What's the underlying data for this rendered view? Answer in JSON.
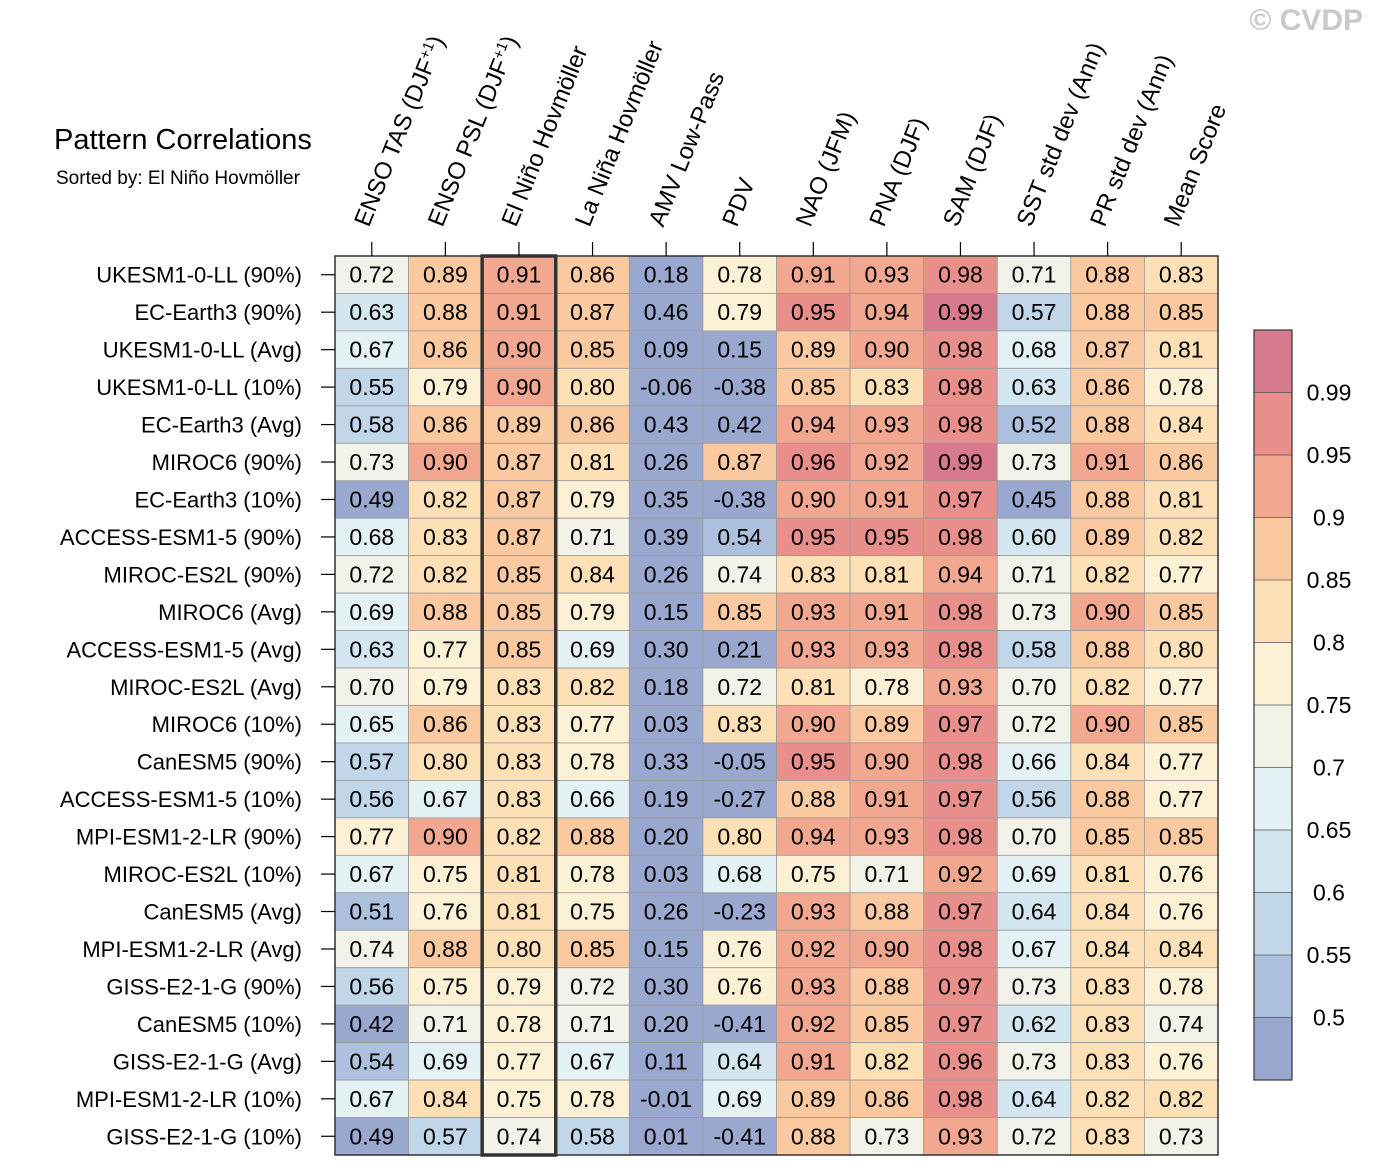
{
  "watermark": "© CVDP",
  "title": "Pattern Correlations",
  "subtitle": "Sorted by: El Niño Hovmöller",
  "chart_data": {
    "type": "heatmap",
    "highlighted_column": "El Niño Hovmöller",
    "columns": [
      {
        "label": "ENSO TAS (DJF",
        "sup": "+1",
        "suffix": ")"
      },
      {
        "label": "ENSO PSL (DJF",
        "sup": "+1",
        "suffix": ")"
      },
      {
        "label": "El Niño Hovmöller"
      },
      {
        "label": "La Niña Hovmöller"
      },
      {
        "label": "AMV Low-Pass"
      },
      {
        "label": "PDV"
      },
      {
        "label": "NAO (JFM)"
      },
      {
        "label": "PNA (DJF)"
      },
      {
        "label": "SAM (DJF)"
      },
      {
        "label": "SST std dev (Ann)"
      },
      {
        "label": "PR std dev (Ann)"
      },
      {
        "label": "Mean Score"
      }
    ],
    "rows": [
      "UKESM1-0-LL (90%)",
      "EC-Earth3 (90%)",
      "UKESM1-0-LL (Avg)",
      "UKESM1-0-LL (10%)",
      "EC-Earth3 (Avg)",
      "MIROC6 (90%)",
      "EC-Earth3 (10%)",
      "ACCESS-ESM1-5 (90%)",
      "MIROC-ES2L (90%)",
      "MIROC6 (Avg)",
      "ACCESS-ESM1-5 (Avg)",
      "MIROC-ES2L (Avg)",
      "MIROC6 (10%)",
      "CanESM5 (90%)",
      "ACCESS-ESM1-5 (10%)",
      "MPI-ESM1-2-LR (90%)",
      "MIROC-ES2L (10%)",
      "CanESM5 (Avg)",
      "MPI-ESM1-2-LR (Avg)",
      "GISS-E2-1-G (90%)",
      "CanESM5 (10%)",
      "GISS-E2-1-G (Avg)",
      "MPI-ESM1-2-LR (10%)",
      "GISS-E2-1-G (10%)"
    ],
    "values": [
      [
        "0.72",
        "0.89",
        "0.91",
        "0.86",
        "0.18",
        "0.78",
        "0.91",
        "0.93",
        "0.98",
        "0.71",
        "0.88",
        "0.83"
      ],
      [
        "0.63",
        "0.88",
        "0.91",
        "0.87",
        "0.46",
        "0.79",
        "0.95",
        "0.94",
        "0.99",
        "0.57",
        "0.88",
        "0.85"
      ],
      [
        "0.67",
        "0.86",
        "0.90",
        "0.85",
        "0.09",
        "0.15",
        "0.89",
        "0.90",
        "0.98",
        "0.68",
        "0.87",
        "0.81"
      ],
      [
        "0.55",
        "0.79",
        "0.90",
        "0.80",
        "-0.06",
        "-0.38",
        "0.85",
        "0.83",
        "0.98",
        "0.63",
        "0.86",
        "0.78"
      ],
      [
        "0.58",
        "0.86",
        "0.89",
        "0.86",
        "0.43",
        "0.42",
        "0.94",
        "0.93",
        "0.98",
        "0.52",
        "0.88",
        "0.84"
      ],
      [
        "0.73",
        "0.90",
        "0.87",
        "0.81",
        "0.26",
        "0.87",
        "0.96",
        "0.92",
        "0.99",
        "0.73",
        "0.91",
        "0.86"
      ],
      [
        "0.49",
        "0.82",
        "0.87",
        "0.79",
        "0.35",
        "-0.38",
        "0.90",
        "0.91",
        "0.97",
        "0.45",
        "0.88",
        "0.81"
      ],
      [
        "0.68",
        "0.83",
        "0.87",
        "0.71",
        "0.39",
        "0.54",
        "0.95",
        "0.95",
        "0.98",
        "0.60",
        "0.89",
        "0.82"
      ],
      [
        "0.72",
        "0.82",
        "0.85",
        "0.84",
        "0.26",
        "0.74",
        "0.83",
        "0.81",
        "0.94",
        "0.71",
        "0.82",
        "0.77"
      ],
      [
        "0.69",
        "0.88",
        "0.85",
        "0.79",
        "0.15",
        "0.85",
        "0.93",
        "0.91",
        "0.98",
        "0.73",
        "0.90",
        "0.85"
      ],
      [
        "0.63",
        "0.77",
        "0.85",
        "0.69",
        "0.30",
        "0.21",
        "0.93",
        "0.93",
        "0.98",
        "0.58",
        "0.88",
        "0.80"
      ],
      [
        "0.70",
        "0.79",
        "0.83",
        "0.82",
        "0.18",
        "0.72",
        "0.81",
        "0.78",
        "0.93",
        "0.70",
        "0.82",
        "0.77"
      ],
      [
        "0.65",
        "0.86",
        "0.83",
        "0.77",
        "0.03",
        "0.83",
        "0.90",
        "0.89",
        "0.97",
        "0.72",
        "0.90",
        "0.85"
      ],
      [
        "0.57",
        "0.80",
        "0.83",
        "0.78",
        "0.33",
        "-0.05",
        "0.95",
        "0.90",
        "0.98",
        "0.66",
        "0.84",
        "0.77"
      ],
      [
        "0.56",
        "0.67",
        "0.83",
        "0.66",
        "0.19",
        "-0.27",
        "0.88",
        "0.91",
        "0.97",
        "0.56",
        "0.88",
        "0.77"
      ],
      [
        "0.77",
        "0.90",
        "0.82",
        "0.88",
        "0.20",
        "0.80",
        "0.94",
        "0.93",
        "0.98",
        "0.70",
        "0.85",
        "0.85"
      ],
      [
        "0.67",
        "0.75",
        "0.81",
        "0.78",
        "0.03",
        "0.68",
        "0.75",
        "0.71",
        "0.92",
        "0.69",
        "0.81",
        "0.76"
      ],
      [
        "0.51",
        "0.76",
        "0.81",
        "0.75",
        "0.26",
        "-0.23",
        "0.93",
        "0.88",
        "0.97",
        "0.64",
        "0.84",
        "0.76"
      ],
      [
        "0.74",
        "0.88",
        "0.80",
        "0.85",
        "0.15",
        "0.76",
        "0.92",
        "0.90",
        "0.98",
        "0.67",
        "0.84",
        "0.84"
      ],
      [
        "0.56",
        "0.75",
        "0.79",
        "0.72",
        "0.30",
        "0.76",
        "0.93",
        "0.88",
        "0.97",
        "0.73",
        "0.83",
        "0.78"
      ],
      [
        "0.42",
        "0.71",
        "0.78",
        "0.71",
        "0.20",
        "-0.41",
        "0.92",
        "0.85",
        "0.97",
        "0.62",
        "0.83",
        "0.74"
      ],
      [
        "0.54",
        "0.69",
        "0.77",
        "0.67",
        "0.11",
        "0.64",
        "0.91",
        "0.82",
        "0.96",
        "0.73",
        "0.83",
        "0.76"
      ],
      [
        "0.67",
        "0.84",
        "0.75",
        "0.78",
        "-0.01",
        "0.69",
        "0.89",
        "0.86",
        "0.98",
        "0.64",
        "0.82",
        "0.82"
      ],
      [
        "0.49",
        "0.57",
        "0.74",
        "0.58",
        "0.01",
        "-0.41",
        "0.88",
        "0.73",
        "0.93",
        "0.72",
        "0.83",
        "0.73"
      ]
    ],
    "colorbar": {
      "levels": [
        0.5,
        0.55,
        0.6,
        0.65,
        0.7,
        0.75,
        0.8,
        0.85,
        0.9,
        0.95,
        0.99
      ],
      "labels": [
        "0.5",
        "0.55",
        "0.6",
        "0.65",
        "0.7",
        "0.75",
        "0.8",
        "0.85",
        "0.9",
        "0.95",
        "0.99"
      ],
      "colors": [
        "#9aa8d0",
        "#adc0de",
        "#c1d6e8",
        "#d4e6f0",
        "#e4f1f5",
        "#f2f2e8",
        "#fdf1d5",
        "#fde0b6",
        "#fbc9a0",
        "#f2a890",
        "#e88f8c",
        "#d87a8e"
      ]
    }
  }
}
